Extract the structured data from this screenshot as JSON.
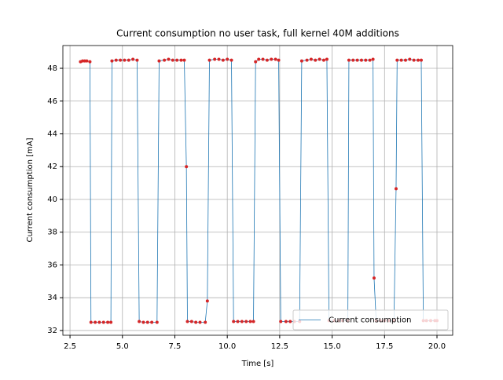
{
  "chart_data": {
    "type": "line",
    "title": "Current consumption no user task, full kernel 40M additions",
    "x_label": "Time [s]",
    "y_label": "Current consumption [mA]",
    "x": [
      3.0,
      3.1,
      3.2,
      3.3,
      3.45,
      3.5,
      3.7,
      3.9,
      4.1,
      4.3,
      4.45,
      4.5,
      4.7,
      4.9,
      5.1,
      5.3,
      5.5,
      5.7,
      5.8,
      6.0,
      6.2,
      6.4,
      6.65,
      6.75,
      7.0,
      7.2,
      7.4,
      7.6,
      7.8,
      7.95,
      8.05,
      8.1,
      8.3,
      8.5,
      8.7,
      8.95,
      9.05,
      9.15,
      9.4,
      9.6,
      9.8,
      10.0,
      10.2,
      10.3,
      10.5,
      10.7,
      10.9,
      11.1,
      11.25,
      11.35,
      11.5,
      11.7,
      11.9,
      12.1,
      12.3,
      12.45,
      12.55,
      12.8,
      13.0,
      13.2,
      13.45,
      13.55,
      13.8,
      14.0,
      14.2,
      14.4,
      14.6,
      14.75,
      14.85,
      15.1,
      15.3,
      15.5,
      15.75,
      15.8,
      16.0,
      16.2,
      16.4,
      16.6,
      16.8,
      16.95,
      17.0,
      17.1,
      17.3,
      17.5,
      17.7,
      17.95,
      18.05,
      18.1,
      18.3,
      18.5,
      18.7,
      18.9,
      19.1,
      19.25,
      19.35,
      19.5,
      19.7,
      19.9,
      20.0
    ],
    "series": [
      {
        "name": "Current consumption",
        "color": "#1f77b4",
        "marker_color": "#d62728",
        "values": [
          48.4,
          48.45,
          48.45,
          48.45,
          48.4,
          32.5,
          32.5,
          32.5,
          32.5,
          32.5,
          32.5,
          48.45,
          48.5,
          48.5,
          48.5,
          48.5,
          48.55,
          48.5,
          32.55,
          32.5,
          32.5,
          32.5,
          32.5,
          48.45,
          48.5,
          48.55,
          48.5,
          48.5,
          48.5,
          48.5,
          42.0,
          32.55,
          32.55,
          32.5,
          32.5,
          32.5,
          33.8,
          48.5,
          48.55,
          48.55,
          48.5,
          48.55,
          48.5,
          32.55,
          32.55,
          32.55,
          32.55,
          32.55,
          32.55,
          48.4,
          48.55,
          48.55,
          48.5,
          48.55,
          48.55,
          48.5,
          32.55,
          32.55,
          32.55,
          32.55,
          32.55,
          48.45,
          48.5,
          48.55,
          48.5,
          48.55,
          48.5,
          48.55,
          32.6,
          32.6,
          32.6,
          32.6,
          32.6,
          48.5,
          48.5,
          48.5,
          48.5,
          48.5,
          48.5,
          48.55,
          35.2,
          32.6,
          32.6,
          32.6,
          32.6,
          32.6,
          40.65,
          48.5,
          48.5,
          48.5,
          48.55,
          48.5,
          48.5,
          48.5,
          32.6,
          32.6,
          32.6,
          32.6,
          32.6
        ]
      }
    ],
    "xlim": [
      2.16,
      20.75
    ],
    "ylim": [
      31.71,
      49.39
    ],
    "xticks": [
      2.5,
      {
        "value": 5,
        "label": "5.0"
      },
      7.5,
      {
        "value": 10,
        "label": "10.0"
      },
      12.5,
      {
        "value": 15,
        "label": "15.0"
      },
      17.5,
      {
        "value": 20,
        "label": "20.0"
      }
    ],
    "yticks": [
      32,
      34,
      36,
      38,
      40,
      42,
      44,
      46,
      48
    ],
    "grid": true,
    "legend": "lower right"
  }
}
